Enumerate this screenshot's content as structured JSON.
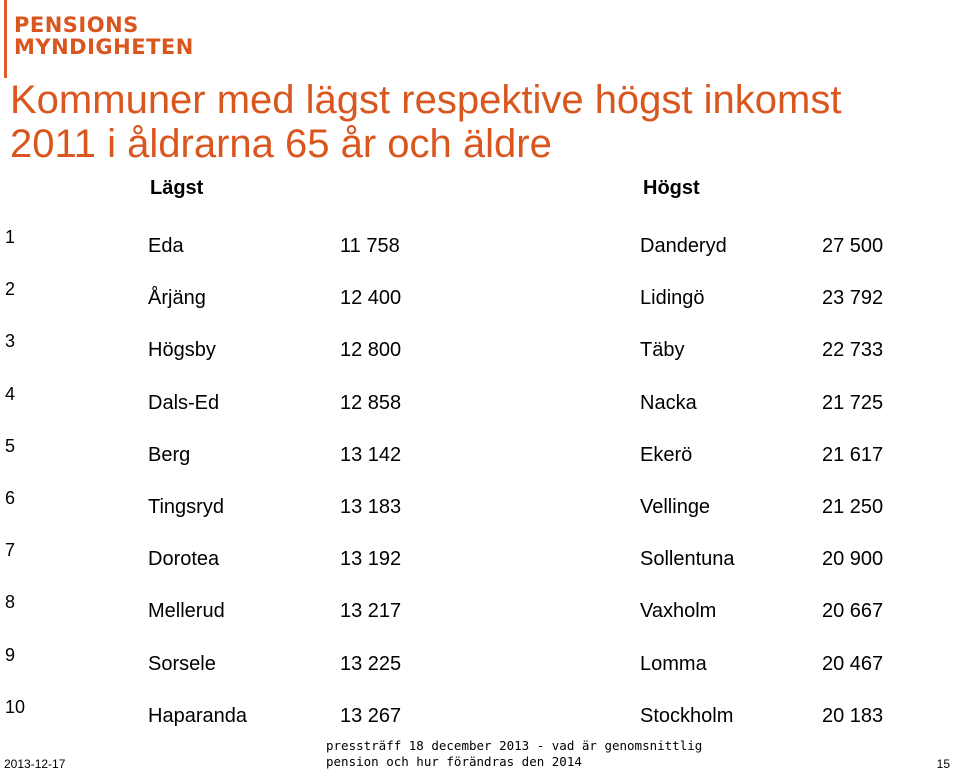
{
  "logo": {
    "line1": "PENSIONS",
    "line2": "MYNDIGHETEN",
    "color": "#d9561f"
  },
  "title": {
    "line1": "Kommuner med lägst respektive högst inkomst",
    "line2": "2011 i åldrarna 65 år och äldre"
  },
  "headers": {
    "lowest": "Lägst",
    "highest": "Högst"
  },
  "rows": [
    {
      "rank": "1",
      "low_name": "Eda",
      "low_value": "11 758",
      "high_name": "Danderyd",
      "high_value": "27 500"
    },
    {
      "rank": "2",
      "low_name": "Årjäng",
      "low_value": "12 400",
      "high_name": "Lidingö",
      "high_value": "23 792"
    },
    {
      "rank": "3",
      "low_name": "Högsby",
      "low_value": "12 800",
      "high_name": "Täby",
      "high_value": "22 733"
    },
    {
      "rank": "4",
      "low_name": "Dals-Ed",
      "low_value": "12 858",
      "high_name": "Nacka",
      "high_value": "21 725"
    },
    {
      "rank": "5",
      "low_name": "Berg",
      "low_value": "13 142",
      "high_name": "Ekerö",
      "high_value": "21 617"
    },
    {
      "rank": "6",
      "low_name": "Tingsryd",
      "low_value": "13 183",
      "high_name": "Vellinge",
      "high_value": "21 250"
    },
    {
      "rank": "7",
      "low_name": "Dorotea",
      "low_value": "13 192",
      "high_name": "Sollentuna",
      "high_value": "20 900"
    },
    {
      "rank": "8",
      "low_name": "Mellerud",
      "low_value": "13 217",
      "high_name": "Vaxholm",
      "high_value": "20 667"
    },
    {
      "rank": "9",
      "low_name": "Sorsele",
      "low_value": "13 225",
      "high_name": "Lomma",
      "high_value": "20 467"
    },
    {
      "rank": "10",
      "low_name": "Haparanda",
      "low_value": "13 267",
      "high_name": "Stockholm",
      "high_value": "20 183"
    }
  ],
  "footer": {
    "date": "2013-12-17",
    "note_line1": "pressträff 18 december 2013 - vad är genomsnittlig",
    "note_line2": "pension och hur förändras den 2014",
    "page": "15"
  }
}
